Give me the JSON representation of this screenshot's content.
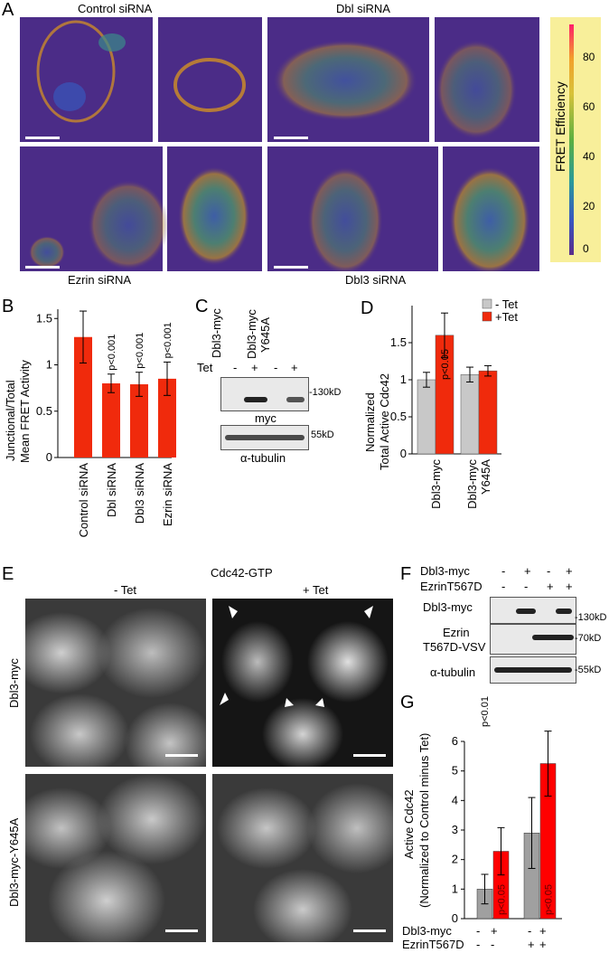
{
  "panelA": {
    "letter": "A",
    "titles": [
      "Control siRNA",
      "Dbl siRNA",
      "Ezrin siRNA",
      "Dbl3 siRNA"
    ],
    "colorbar": {
      "label": "FRET Efficiency",
      "ticks": [
        "80",
        "60",
        "40",
        "20",
        "0"
      ]
    }
  },
  "panelB": {
    "letter": "B",
    "ylabel_line1": "Junctional/Total",
    "ylabel_line2": "Mean FRET Activity",
    "yticks": [
      "0",
      "0.5",
      "1",
      "1.5"
    ],
    "categories": [
      "Control siRNA",
      "Dbl siRNA",
      "Dbl3 siRNA",
      "Ezrin siRNA"
    ],
    "pvalues": [
      "p<0.001",
      "p<0.001",
      "p<0.001"
    ]
  },
  "panelC": {
    "letter": "C",
    "col1": "Dbl3-myc",
    "col2_line1": "Dbl3-myc",
    "col2_line2": "Y645A",
    "tet": "Tet",
    "signs": [
      "-",
      "+",
      "-",
      "+"
    ],
    "blot1_label": "myc",
    "blot1_mw": "-130kD",
    "blot2_label": "α-tubulin",
    "blot2_mw": "55kD"
  },
  "panelD": {
    "letter": "D",
    "ylabel_line1": "Normalized",
    "ylabel_line2": "Total Active Cdc42",
    "yticks": [
      "0",
      "0.5",
      "1",
      "1.5"
    ],
    "legend": [
      "- Tet",
      "+Tet"
    ],
    "categories": [
      "Dbl3-myc",
      "Dbl3-myc Y645A"
    ],
    "pvalue": "p<0.05"
  },
  "panelE": {
    "letter": "E",
    "title": "Cdc42-GTP",
    "col1": "- Tet",
    "col2": "+ Tet",
    "row1": "Dbl3-myc",
    "row2": "Dbl3-myc-Y645A"
  },
  "panelF": {
    "letter": "F",
    "row1_label": "Dbl3-myc",
    "row1_signs": [
      "-",
      "+",
      "-",
      "+"
    ],
    "row2_label": "EzrinT567D",
    "row2_signs": [
      "-",
      "-",
      "+",
      "+"
    ],
    "blot1_label": "Dbl3-myc",
    "blot1_mw": "-130kD",
    "blot2_label_line1": "Ezrin",
    "blot2_label_line2": "T567D-VSV",
    "blot2_mw": "-70kD",
    "blot3_label": "α-tubulin",
    "blot3_mw": "-55kD"
  },
  "panelG": {
    "letter": "G",
    "ylabel_line1": "Active Cdc42",
    "ylabel_line2": "(Normalized to Control minus Tet)",
    "yticks": [
      "0",
      "1",
      "2",
      "3",
      "4",
      "5",
      "6"
    ],
    "top_pvalue": "p<0.01",
    "bar_pvalues": [
      "p<0.05",
      "p<0.05"
    ],
    "row1_label": "Dbl3-myc",
    "row1_signs": [
      "-",
      "+",
      "-",
      "+"
    ],
    "row2_label": "EzrinT567D",
    "row2_signs": [
      "-",
      "-",
      "+",
      "+"
    ]
  },
  "chart_data": [
    {
      "type": "bar",
      "panel": "B",
      "categories": [
        "Control siRNA",
        "Dbl siRNA",
        "Dbl3 siRNA",
        "Ezrin siRNA"
      ],
      "values": [
        1.3,
        0.8,
        0.79,
        0.85
      ],
      "errors": [
        0.28,
        0.1,
        0.13,
        0.18
      ],
      "ylabel": "Junctional/Total Mean FRET Activity",
      "ylim": [
        0,
        1.6
      ],
      "color": "#f02a0c"
    },
    {
      "type": "bar",
      "panel": "D",
      "categories": [
        "Dbl3-myc",
        "Dbl3-myc Y645A"
      ],
      "series": [
        {
          "name": "- Tet",
          "values": [
            1.0,
            1.07
          ],
          "errors": [
            0.1,
            0.1
          ],
          "color": "#c8c8c8"
        },
        {
          "name": "+Tet",
          "values": [
            1.6,
            1.12
          ],
          "errors": [
            0.3,
            0.07
          ],
          "color": "#f02a0c"
        }
      ],
      "ylabel": "Normalized Total Active Cdc42",
      "ylim": [
        0,
        2.0
      ]
    },
    {
      "type": "bar",
      "panel": "G",
      "groups": [
        {
          "values": [
            1.0,
            2.28
          ],
          "errors": [
            0.5,
            0.8
          ]
        },
        {
          "values": [
            2.9,
            5.25
          ],
          "errors": [
            1.2,
            1.1
          ]
        }
      ],
      "colors": [
        "#a0a0a0",
        "#ff0000"
      ],
      "ylabel": "Active Cdc42 (Normalized to Control minus Tet)",
      "ylim": [
        0,
        6
      ]
    }
  ]
}
